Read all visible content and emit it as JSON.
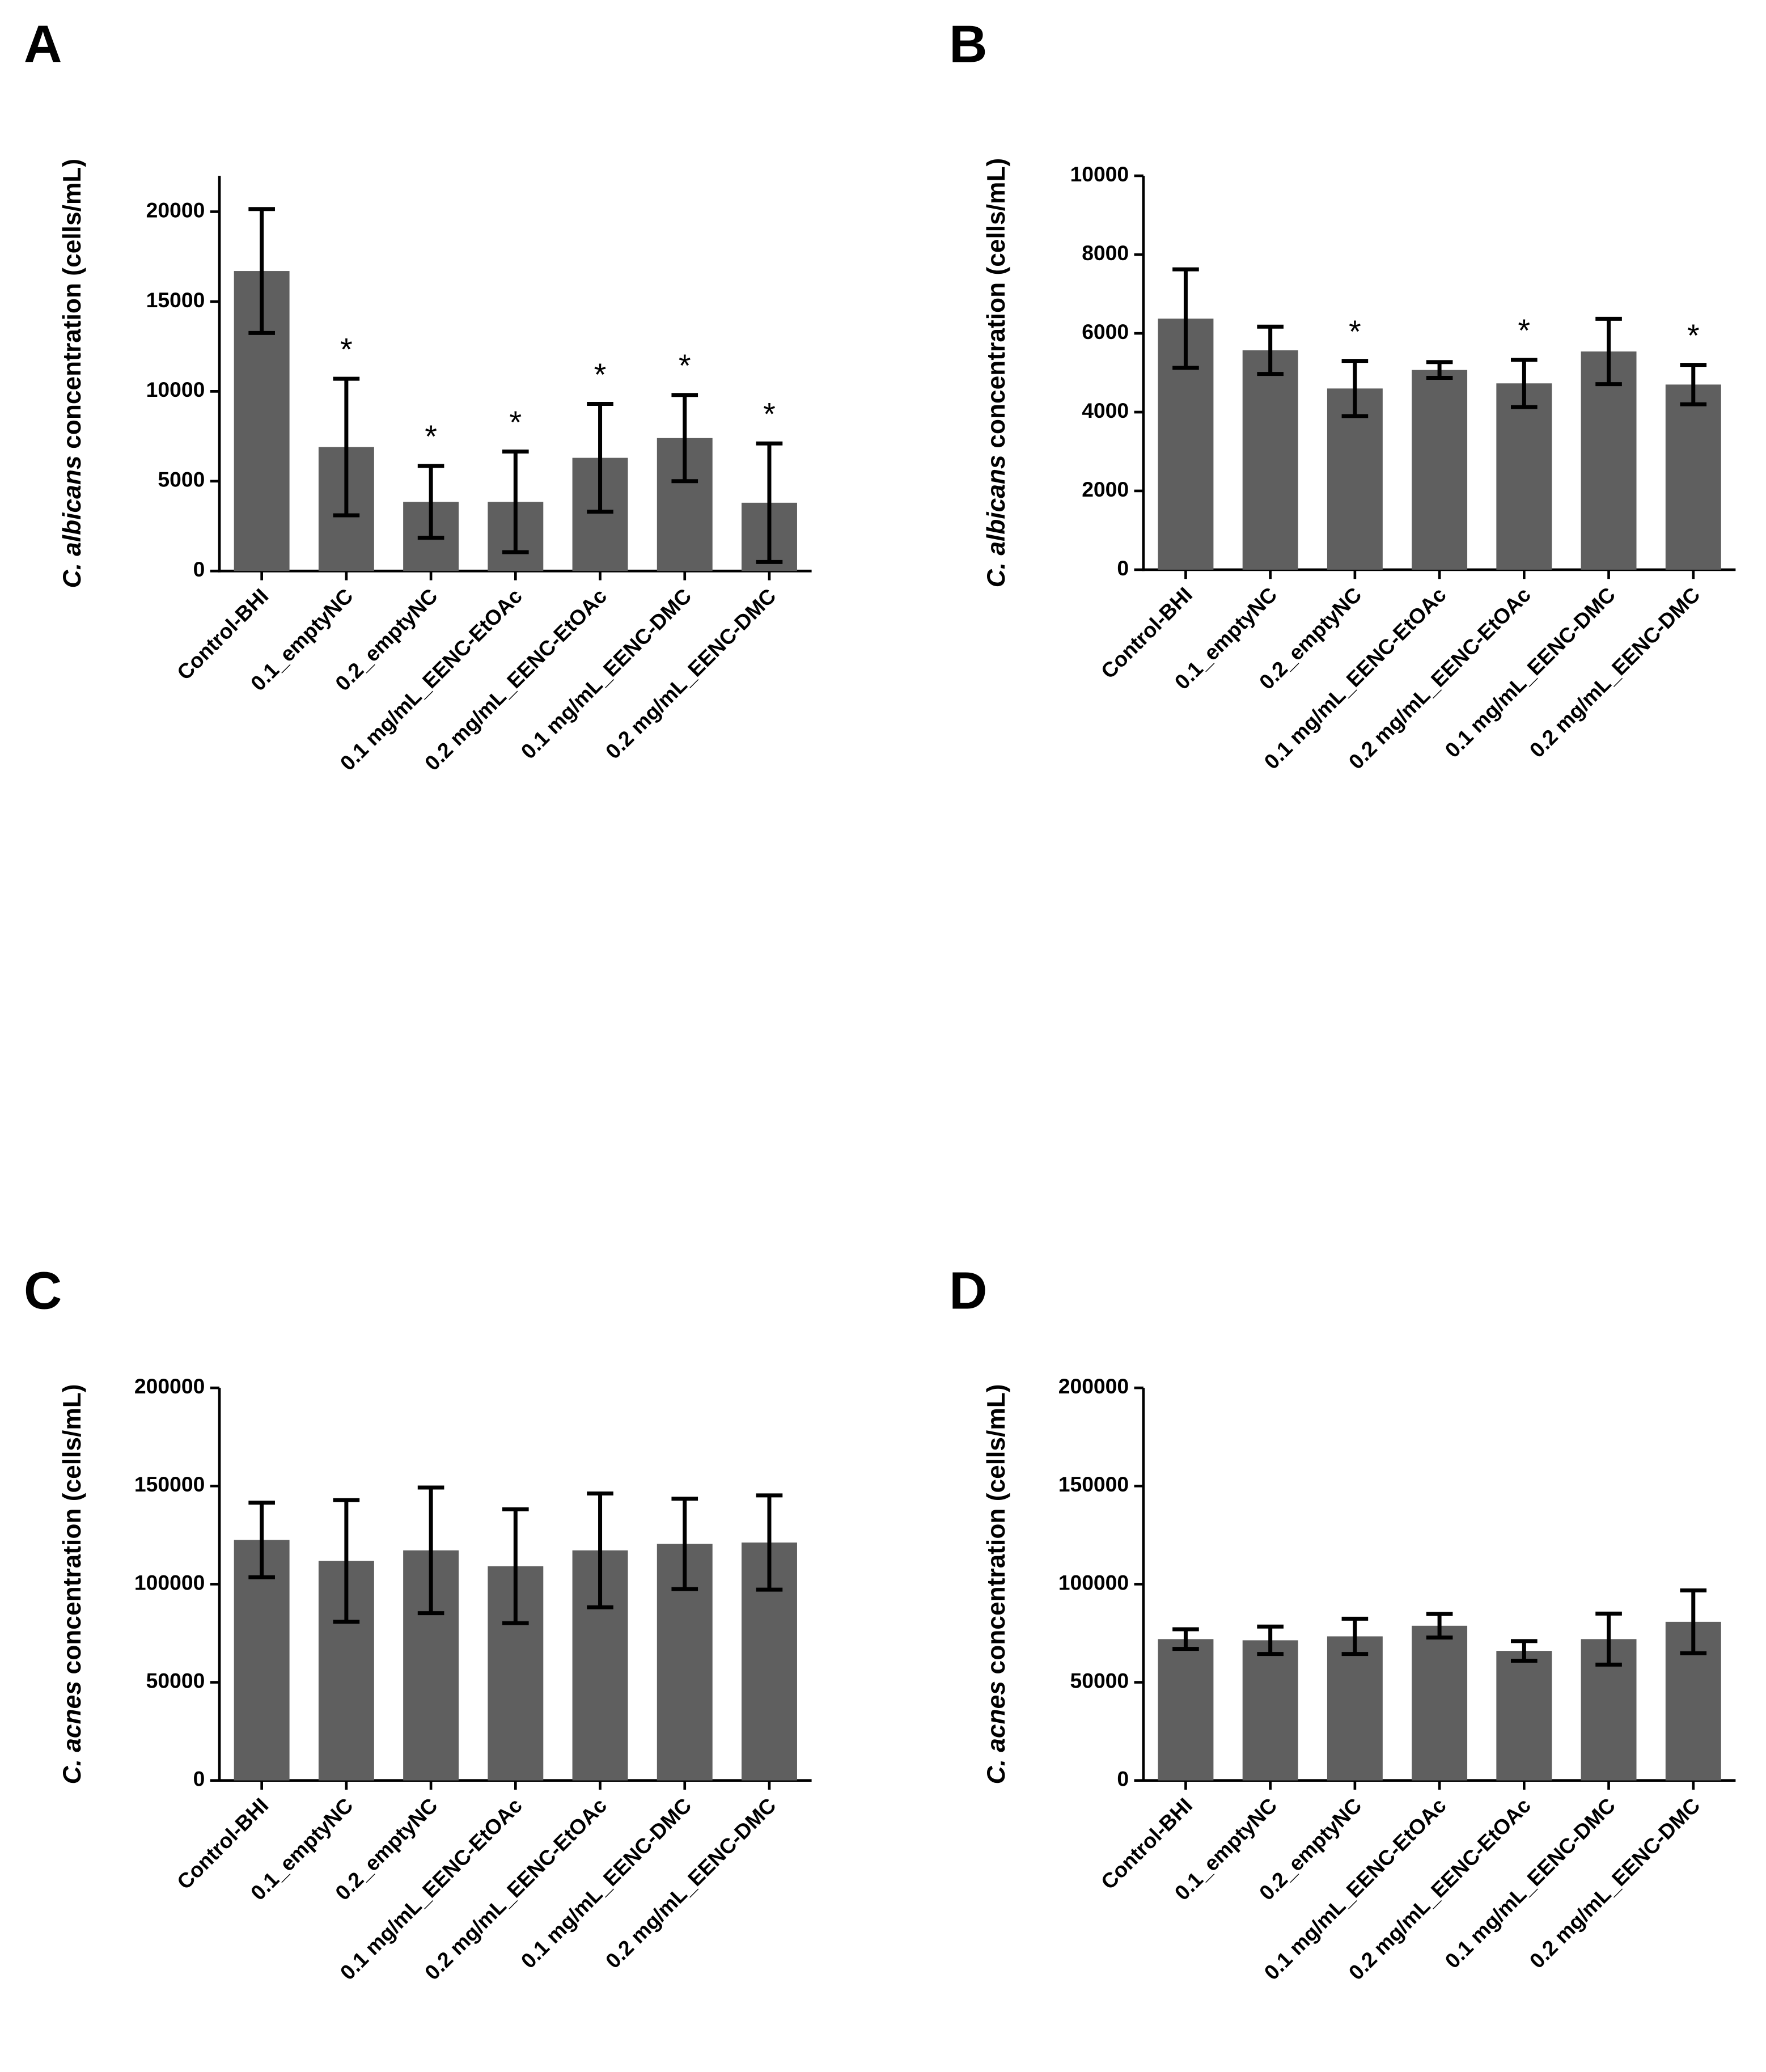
{
  "chart_data": [
    {
      "type": "bar",
      "panel": "A",
      "y_label_italic": "C. albicans",
      "y_label": "concentration (cells/mL)",
      "categories": [
        "Control-BHI",
        "0.1_emptyNC",
        "0.2_emptyNC",
        "0.1 mg/mL_EENC-EtOAc",
        "0.2 mg/mL_EENC-EtOAc",
        "0.1 mg/mL_EENC-DMC",
        "0.2 mg/mL_EENC-DMC"
      ],
      "values": [
        16700,
        6900,
        3850,
        3850,
        6300,
        7400,
        3800
      ],
      "errors": [
        3450,
        3800,
        2000,
        2800,
        3000,
        2400,
        3300
      ],
      "annotations": [
        null,
        "*",
        "*",
        "*",
        "*",
        "*",
        "*"
      ],
      "color": "#5f5f5f",
      "ylim": [
        0,
        22000
      ],
      "yticks": [
        0,
        5000,
        10000,
        15000,
        20000
      ]
    },
    {
      "type": "bar",
      "panel": "B",
      "y_label_italic": "C. albicans",
      "y_label": "concentration (cells/mL)",
      "categories": [
        "Control-BHI",
        "0.1_emptyNC",
        "0.2_emptyNC",
        "0.1 mg/mL_EENC-EtOAc",
        "0.2 mg/mL_EENC-EtOAc",
        "0.1 mg/mL_EENC-DMC",
        "0.2 mg/mL_EENC-DMC"
      ],
      "values": [
        6375,
        5570,
        4600,
        5070,
        4730,
        5540,
        4700
      ],
      "errors": [
        1250,
        600,
        700,
        200,
        600,
        830,
        500
      ],
      "annotations": [
        null,
        null,
        "*",
        null,
        "*",
        null,
        "*"
      ],
      "color": "#5f5f5f",
      "ylim": [
        0,
        10000
      ],
      "yticks": [
        0,
        2000,
        4000,
        6000,
        8000,
        10000
      ]
    },
    {
      "type": "bar",
      "panel": "C",
      "y_label_italic": "C. acnes",
      "y_label": "concentration (cells/mL)",
      "categories": [
        "Control-BHI",
        "0.1_emptyNC",
        "0.2_emptyNC",
        "0.1 mg/mL_EENC-EtOAc",
        "0.2 mg/mL_EENC-EtOAc",
        "0.1 mg/mL_EENC-DMC",
        "0.2 mg/mL_EENC-DMC"
      ],
      "values": [
        122500,
        111800,
        117200,
        109100,
        117200,
        120500,
        121200
      ],
      "errors": [
        19000,
        31000,
        32000,
        29000,
        29000,
        23000,
        24000
      ],
      "color": "#5f5f5f",
      "ylim": [
        0,
        200000
      ],
      "yticks": [
        0,
        50000,
        100000,
        150000,
        200000
      ]
    },
    {
      "type": "bar",
      "panel": "D",
      "y_label_italic": "C. acnes",
      "y_label": "concentration (cells/mL)",
      "categories": [
        "Control-BHI",
        "0.1_emptyNC",
        "0.2_emptyNC",
        "0.1 mg/mL_EENC-EtOAc",
        "0.2 mg/mL_EENC-EtOAc",
        "0.1 mg/mL_EENC-DMC",
        "0.2 mg/mL_EENC-DMC"
      ],
      "values": [
        72000,
        71400,
        73400,
        78800,
        66000,
        72000,
        80800
      ],
      "errors": [
        5000,
        7000,
        9000,
        6000,
        5000,
        13000,
        16000
      ],
      "color": "#5f5f5f",
      "ylim": [
        0,
        200000
      ],
      "yticks": [
        0,
        50000,
        100000,
        150000,
        200000
      ]
    }
  ]
}
